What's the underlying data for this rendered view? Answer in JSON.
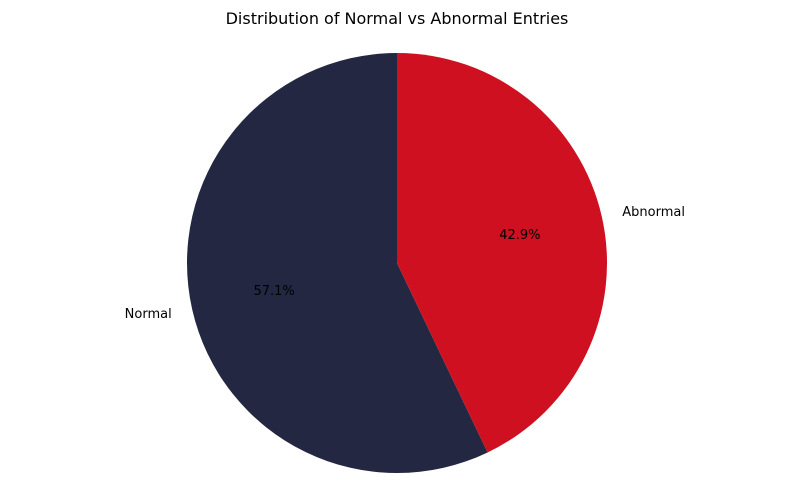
{
  "chart_data": {
    "type": "pie",
    "title": "Distribution of Normal vs Abnormal Entries",
    "categories": [
      "Normal",
      "Abnormal"
    ],
    "values": [
      57.1,
      42.9
    ],
    "labels": [
      "57.1%",
      "42.9%"
    ],
    "colors": [
      "#232741",
      "#cf1020"
    ],
    "start_angle_deg": 90,
    "direction": "counterclockwise",
    "legend": "none"
  }
}
